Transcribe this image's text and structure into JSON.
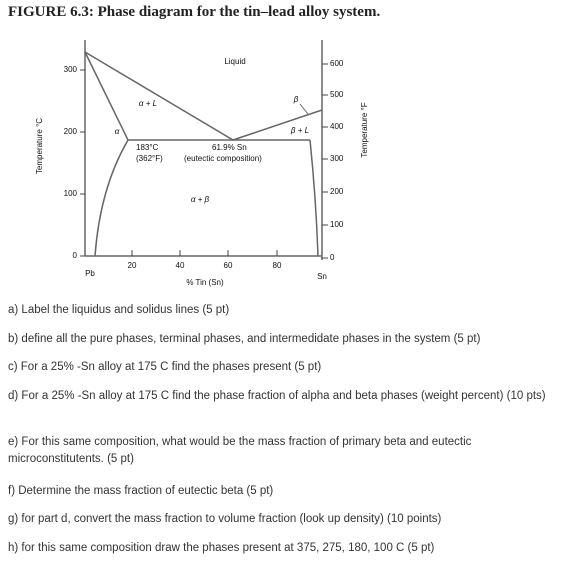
{
  "title": "FIGURE 6.3: Phase diagram for the tin–lead alloy system.",
  "diagram": {
    "regions": {
      "liquid": "Liquid",
      "alpha_liquid": "α + L",
      "alpha": "α",
      "beta": "β",
      "beta_liquid": "β + L",
      "alpha_beta": "α + β"
    },
    "annotations": {
      "eutectic_temp_c": "183°C",
      "eutectic_temp_f": "(362°F)",
      "eutectic_comp": "61.9% Sn",
      "eutectic_note": "(eutectic composition)"
    },
    "y_axis_left": {
      "title": "Temperature °C",
      "ticks": [
        "0",
        "100",
        "200",
        "300"
      ]
    },
    "y_axis_right": {
      "title": "Temperature °F",
      "ticks": [
        "0",
        "100",
        "200",
        "300",
        "400",
        "500",
        "600"
      ]
    },
    "x_axis": {
      "title": "% Tin (Sn)",
      "ticks": [
        "20",
        "40",
        "60",
        "80"
      ],
      "left_end": "Pb",
      "right_end": "Sn"
    }
  },
  "questions": [
    "a) Label the liquidus and solidus lines (5 pt)",
    "b) define all the pure phases, terminal phases, and intermedidate phases in the system (5 pt)",
    "c)  For a 25% -Sn alloy at 175 C find the phases present (5 pt)",
    "d) For a 25% -Sn alloy at 175 C find the phase fraction of alpha and beta phases (weight percent) (10 pts)",
    "e) For this same composition, what would be the mass fraction of primary beta and eutectic microconstitutents. (5 pt)",
    "f) Determine the mass fraction of eutectic beta (5 pt)",
    "g) for part d, convert the mass fraction to volume fraction (look up density) (10 points)",
    "h) for this same composition draw the phases present at  375, 275, 180, 100 C (5 pt)"
  ]
}
